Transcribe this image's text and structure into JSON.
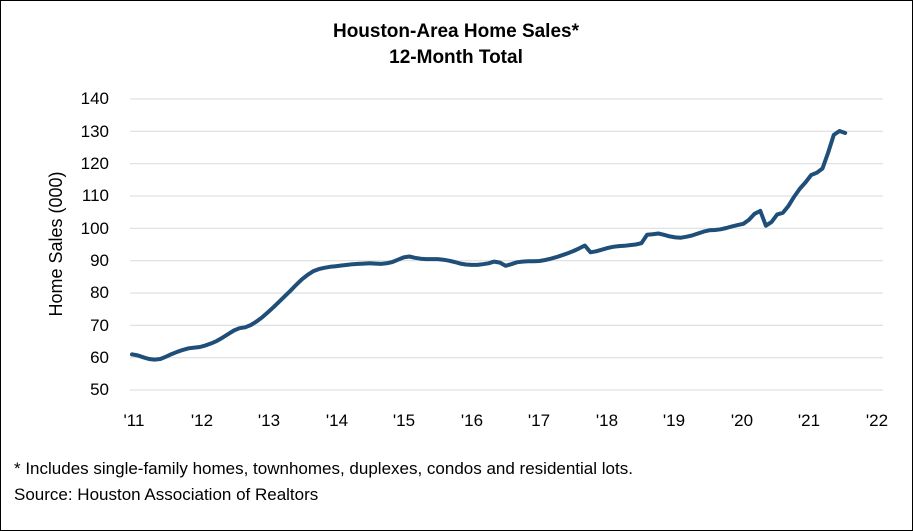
{
  "title": "Houston-Area Home Sales*",
  "subtitle": "12-Month Total",
  "footnote": "* Includes single-family homes, townhomes, duplexes, condos and residential lots.",
  "source": "Source: Houston Association of Realtors",
  "chart_data": {
    "type": "line",
    "title": "Houston-Area Home Sales*",
    "subtitle": "12-Month Total",
    "xlabel": "",
    "ylabel": "Home Sales (000)",
    "ylim": [
      50,
      140
    ],
    "ytick_step": 10,
    "ytick_labels": [
      "140",
      "130",
      "120",
      "110",
      "100",
      "90",
      "80",
      "70",
      "60",
      "50"
    ],
    "xtick_labels": [
      "'11",
      "'12",
      "'13",
      "'14",
      "'15",
      "'16",
      "'17",
      "'18",
      "'19",
      "'20",
      "'21",
      "'22"
    ],
    "grid": "horizontal-only",
    "legend_position": "none",
    "line_color": "#1F4E79",
    "gridline_color": "#D9D9D9",
    "frequency": "monthly",
    "x_range": [
      "2011-01",
      "2021-07"
    ],
    "series": [
      {
        "name": "Houston-area home sales, 12-month total (thousands)",
        "values": [
          61.0,
          60.7,
          60.1,
          59.6,
          59.4,
          59.6,
          60.3,
          61.1,
          61.8,
          62.4,
          62.9,
          63.1,
          63.3,
          63.8,
          64.4,
          65.2,
          66.2,
          67.3,
          68.4,
          69.1,
          69.4,
          70.1,
          71.2,
          72.5,
          74.0,
          75.6,
          77.3,
          79.0,
          80.7,
          82.5,
          84.2,
          85.6,
          86.7,
          87.4,
          87.8,
          88.1,
          88.3,
          88.5,
          88.7,
          88.9,
          89.0,
          89.1,
          89.2,
          89.1,
          89.0,
          89.2,
          89.6,
          90.3,
          91.0,
          91.3,
          90.9,
          90.6,
          90.5,
          90.5,
          90.5,
          90.3,
          90.0,
          89.6,
          89.1,
          88.8,
          88.7,
          88.7,
          88.9,
          89.2,
          89.7,
          89.4,
          88.4,
          88.9,
          89.5,
          89.7,
          89.8,
          89.8,
          89.9,
          90.2,
          90.6,
          91.1,
          91.7,
          92.3,
          93.0,
          93.8,
          94.7,
          92.6,
          92.9,
          93.4,
          93.9,
          94.3,
          94.5,
          94.6,
          94.8,
          95.0,
          95.4,
          98.0,
          98.2,
          98.4,
          98.0,
          97.5,
          97.2,
          97.1,
          97.4,
          97.8,
          98.4,
          99.0,
          99.4,
          99.5,
          99.7,
          100.1,
          100.6,
          101.0,
          101.4,
          102.6,
          104.5,
          105.4,
          100.8,
          102.0,
          104.3,
          104.8,
          107.0,
          109.8,
          112.3,
          114.2,
          116.5,
          117.2,
          118.5,
          123.5,
          128.9,
          130.1,
          129.5
        ]
      }
    ]
  }
}
